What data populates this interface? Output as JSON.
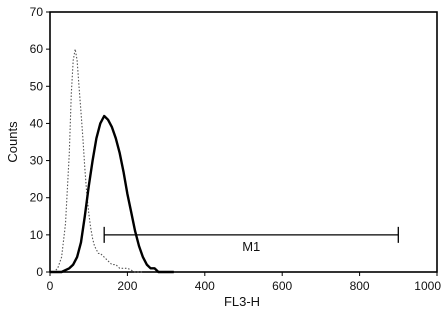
{
  "chart_data": {
    "type": "line",
    "title": "",
    "xlabel": "FL3-H",
    "ylabel": "Counts",
    "xlim": [
      0,
      1000
    ],
    "ylim": [
      0,
      70
    ],
    "x_ticks": [
      0,
      200,
      400,
      600,
      800,
      1000
    ],
    "y_ticks": [
      0,
      10,
      20,
      30,
      40,
      50,
      60,
      70
    ],
    "grid": false,
    "series": [
      {
        "style": "dotted",
        "color": "#555555",
        "x": [
          0,
          10,
          20,
          30,
          40,
          50,
          55,
          60,
          65,
          70,
          75,
          80,
          85,
          90,
          95,
          100,
          105,
          110,
          115,
          120,
          125,
          130,
          140,
          150,
          160,
          170,
          180,
          200,
          220,
          240
        ],
        "y": [
          0,
          0,
          1,
          4,
          13,
          32,
          48,
          57,
          60,
          57,
          50,
          43,
          36,
          28,
          21,
          16,
          12,
          9,
          7,
          6,
          5,
          5,
          4,
          3,
          2,
          2,
          1,
          1,
          0,
          0
        ]
      },
      {
        "style": "solid",
        "color": "#000000",
        "x": [
          0,
          30,
          50,
          60,
          70,
          80,
          90,
          100,
          110,
          120,
          130,
          140,
          150,
          160,
          170,
          180,
          190,
          200,
          210,
          220,
          230,
          240,
          250,
          260,
          270,
          280,
          300,
          320
        ],
        "y": [
          0,
          0,
          1,
          2,
          4,
          8,
          15,
          23,
          30,
          36,
          40,
          42,
          41,
          39,
          36,
          32,
          27,
          21,
          16,
          11,
          7,
          4,
          2,
          1,
          1,
          0,
          0,
          0
        ]
      }
    ],
    "annotations": [
      {
        "label": "M1",
        "x_start": 140,
        "x_end": 900,
        "y": 10
      }
    ]
  }
}
